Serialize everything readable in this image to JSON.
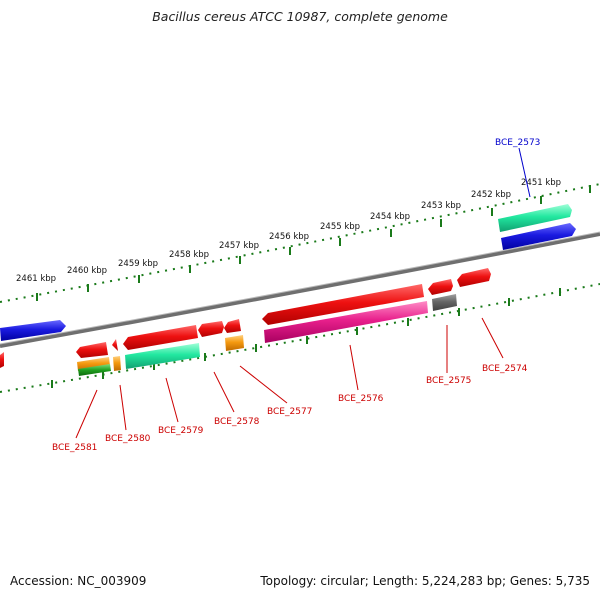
{
  "title": "Bacillus cereus ATCC 10987, complete genome",
  "footer": {
    "accession_label": "Accession: NC_003909",
    "topology_label": "Topology: circular; Length: 5,224,283 bp; Genes: 5,735"
  },
  "colors": {
    "backbone": "#7a7a7a",
    "tick": "#1a7a1a",
    "gene_red": "#ee1111",
    "gene_blue": "#1a1ae0",
    "gene_teal": "#22e8a0",
    "gene_magenta": "#e8208c",
    "gene_orange": "#f59a10",
    "gene_gray": "#666666",
    "label_red": "#cc0000",
    "label_blue": "#0000cc"
  },
  "scale_labels": [
    "2461 kbp",
    "2460 kbp",
    "2459 kbp",
    "2458 kbp",
    "2457 kbp",
    "2456 kbp",
    "2455 kbp",
    "2454 kbp",
    "2453 kbp",
    "2452 kbp",
    "2451 kbp"
  ],
  "gene_labels": [
    {
      "id": "BCE_2573",
      "color": "blue"
    },
    {
      "id": "BCE_2574",
      "color": "red"
    },
    {
      "id": "BCE_2575",
      "color": "red"
    },
    {
      "id": "BCE_2576",
      "color": "red"
    },
    {
      "id": "BCE_2577",
      "color": "red"
    },
    {
      "id": "BCE_2578",
      "color": "red"
    },
    {
      "id": "BCE_2579",
      "color": "red"
    },
    {
      "id": "BCE_2580",
      "color": "red"
    },
    {
      "id": "BCE_2581",
      "color": "red"
    }
  ]
}
